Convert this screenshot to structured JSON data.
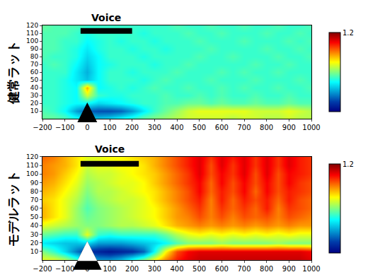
{
  "chart_data": [
    {
      "type": "heatmap",
      "y_label": "健常ラット",
      "x": [
        -200,
        -150,
        -100,
        -50,
        0,
        50,
        100,
        150,
        200,
        250,
        300,
        350,
        400,
        450,
        500,
        550,
        600,
        650,
        700,
        750,
        800,
        850,
        900,
        950,
        1000
      ],
      "y": [
        0,
        10,
        20,
        30,
        40,
        50,
        60,
        70,
        80,
        90,
        100,
        110,
        120
      ],
      "z": [
        [
          0.99,
          0.99,
          0.98,
          0.96,
          0.93,
          0.92,
          0.93,
          0.95,
          0.97,
          0.99,
          1.0,
          1.01,
          1.02,
          1.03,
          1.03,
          1.03,
          1.03,
          1.02,
          1.03,
          1.03,
          1.02,
          1.02,
          1.03,
          1.02,
          1.02
        ],
        [
          0.98,
          0.97,
          0.95,
          0.9,
          0.87,
          0.86,
          0.86,
          0.87,
          0.9,
          0.94,
          0.97,
          0.99,
          1.01,
          1.03,
          1.04,
          1.04,
          1.04,
          1.04,
          1.04,
          1.03,
          1.03,
          1.03,
          1.04,
          1.03,
          1.02
        ],
        [
          0.97,
          0.97,
          0.96,
          0.95,
          0.95,
          0.93,
          0.94,
          0.95,
          0.96,
          0.97,
          0.97,
          0.98,
          0.98,
          0.99,
          0.99,
          0.98,
          0.99,
          0.98,
          0.98,
          0.99,
          0.98,
          0.98,
          0.99,
          0.98,
          0.98
        ],
        [
          0.97,
          0.97,
          0.96,
          0.95,
          1.03,
          0.97,
          0.96,
          0.96,
          0.97,
          0.97,
          0.97,
          0.98,
          0.97,
          0.97,
          0.98,
          0.97,
          0.98,
          0.97,
          0.97,
          0.98,
          0.97,
          0.97,
          0.98,
          0.97,
          0.97
        ],
        [
          0.97,
          0.97,
          0.96,
          0.95,
          1.08,
          0.95,
          0.96,
          0.97,
          0.96,
          0.97,
          0.98,
          0.97,
          0.97,
          0.98,
          0.97,
          0.97,
          0.98,
          0.97,
          0.98,
          0.97,
          0.97,
          0.98,
          0.97,
          0.97,
          0.98
        ],
        [
          0.97,
          0.97,
          0.96,
          0.94,
          0.92,
          0.95,
          0.97,
          0.97,
          0.97,
          0.96,
          0.97,
          0.98,
          0.97,
          0.97,
          0.97,
          0.98,
          0.97,
          0.97,
          0.97,
          0.98,
          0.97,
          0.97,
          0.97,
          0.98,
          0.97
        ],
        [
          0.97,
          0.97,
          0.97,
          0.94,
          0.91,
          0.95,
          0.97,
          0.97,
          0.96,
          0.97,
          0.97,
          0.97,
          0.98,
          0.97,
          0.97,
          0.97,
          0.98,
          0.97,
          0.98,
          0.97,
          0.97,
          0.98,
          0.97,
          0.97,
          0.97
        ],
        [
          0.97,
          0.98,
          0.97,
          0.95,
          0.92,
          0.95,
          0.96,
          0.97,
          0.97,
          0.97,
          0.96,
          0.97,
          0.97,
          0.98,
          0.97,
          0.97,
          0.97,
          0.97,
          0.97,
          0.98,
          0.97,
          0.97,
          0.98,
          0.97,
          0.97
        ],
        [
          0.98,
          0.97,
          0.97,
          0.96,
          0.93,
          0.95,
          0.97,
          0.97,
          0.97,
          0.96,
          0.97,
          0.97,
          0.97,
          0.97,
          0.98,
          0.97,
          0.97,
          0.98,
          0.97,
          0.97,
          0.97,
          0.98,
          0.97,
          0.97,
          0.98
        ],
        [
          0.98,
          0.98,
          0.97,
          0.96,
          0.94,
          0.96,
          0.97,
          0.97,
          0.96,
          0.97,
          0.97,
          0.96,
          0.97,
          0.97,
          0.97,
          0.98,
          0.97,
          0.97,
          0.97,
          0.97,
          0.98,
          0.97,
          0.97,
          0.98,
          0.97
        ],
        [
          0.98,
          0.98,
          0.97,
          0.97,
          0.95,
          0.96,
          0.97,
          0.96,
          0.97,
          0.97,
          0.96,
          0.97,
          0.97,
          0.97,
          0.98,
          0.97,
          0.97,
          0.97,
          0.98,
          0.97,
          0.97,
          0.97,
          0.98,
          0.97,
          0.98
        ],
        [
          0.98,
          0.98,
          0.98,
          0.97,
          0.96,
          0.97,
          0.97,
          0.97,
          0.97,
          0.96,
          0.97,
          0.97,
          0.97,
          0.98,
          0.97,
          0.97,
          0.98,
          0.97,
          0.97,
          0.97,
          0.98,
          0.97,
          0.97,
          0.98,
          0.97
        ],
        [
          0.99,
          0.98,
          0.98,
          0.98,
          0.97,
          0.97,
          0.97,
          0.97,
          0.97,
          0.97,
          0.97,
          0.97,
          0.98,
          0.97,
          0.97,
          0.98,
          0.97,
          0.97,
          0.98,
          0.97,
          0.97,
          0.98,
          0.97,
          0.97,
          0.98
        ]
      ],
      "xlim": [
        -200,
        1000
      ],
      "xticks": [
        -200,
        -100,
        0,
        100,
        200,
        300,
        400,
        500,
        600,
        700,
        800,
        900,
        1000
      ],
      "ylim": [
        0,
        120
      ],
      "yticks": [
        10,
        20,
        30,
        40,
        50,
        60,
        70,
        80,
        90,
        100,
        110,
        120
      ],
      "colorbar": {
        "range": [
          0.8,
          1.2
        ],
        "ticks": [
          1.2
        ]
      },
      "annotations": [
        {
          "text": "Voice",
          "x": [
            -30,
            200
          ],
          "y": 113
        }
      ],
      "arrow": {
        "x": 0,
        "y": [
          2,
          21
        ],
        "color": "black"
      }
    },
    {
      "type": "heatmap",
      "y_label": "モデルラット",
      "x": [
        -200,
        -150,
        -100,
        -50,
        0,
        50,
        100,
        150,
        200,
        250,
        300,
        350,
        400,
        450,
        500,
        550,
        600,
        650,
        700,
        750,
        800,
        850,
        900,
        950,
        1000
      ],
      "y": [
        0,
        10,
        20,
        30,
        40,
        50,
        60,
        70,
        80,
        90,
        100,
        110,
        120
      ],
      "z": [
        [
          1.04,
          1.04,
          1.02,
          0.98,
          0.93,
          0.9,
          0.9,
          0.92,
          0.96,
          1.0,
          1.05,
          1.1,
          1.14,
          1.16,
          1.17,
          1.17,
          1.17,
          1.17,
          1.17,
          1.17,
          1.17,
          1.17,
          1.17,
          1.17,
          1.16
        ],
        [
          1.0,
          0.97,
          0.93,
          0.88,
          0.84,
          0.83,
          0.82,
          0.83,
          0.84,
          0.87,
          0.95,
          1.05,
          1.12,
          1.15,
          1.16,
          1.16,
          1.16,
          1.16,
          1.16,
          1.16,
          1.16,
          1.16,
          1.16,
          1.16,
          1.15
        ],
        [
          0.94,
          0.93,
          0.92,
          0.92,
          0.93,
          0.9,
          0.9,
          0.9,
          0.91,
          0.92,
          0.93,
          0.95,
          0.98,
          1.0,
          1.0,
          1.0,
          1.01,
          1.0,
          1.0,
          1.0,
          1.0,
          1.01,
          1.0,
          1.0,
          1.0
        ],
        [
          0.99,
          0.98,
          0.97,
          0.97,
          1.04,
          0.97,
          0.96,
          0.97,
          0.97,
          0.97,
          0.97,
          0.99,
          1.02,
          1.04,
          1.05,
          1.04,
          1.05,
          1.04,
          1.05,
          1.04,
          1.05,
          1.04,
          1.05,
          1.04,
          1.04
        ],
        [
          1.04,
          1.03,
          1.02,
          1.01,
          1.0,
          1.0,
          1.01,
          1.02,
          1.02,
          1.03,
          1.04,
          1.06,
          1.08,
          1.09,
          1.1,
          1.09,
          1.1,
          1.09,
          1.1,
          1.09,
          1.1,
          1.09,
          1.1,
          1.09,
          1.09
        ],
        [
          1.08,
          1.06,
          1.04,
          1.01,
          0.99,
          1.0,
          1.01,
          1.02,
          1.03,
          1.04,
          1.05,
          1.07,
          1.09,
          1.1,
          1.12,
          1.1,
          1.12,
          1.1,
          1.12,
          1.11,
          1.12,
          1.1,
          1.12,
          1.11,
          1.1
        ],
        [
          1.08,
          1.06,
          1.04,
          1.01,
          0.98,
          1.0,
          1.01,
          1.02,
          1.03,
          1.04,
          1.05,
          1.07,
          1.09,
          1.11,
          1.13,
          1.1,
          1.13,
          1.11,
          1.13,
          1.11,
          1.14,
          1.1,
          1.13,
          1.12,
          1.11
        ],
        [
          1.07,
          1.06,
          1.04,
          1.02,
          0.99,
          1.01,
          1.02,
          1.03,
          1.03,
          1.04,
          1.06,
          1.08,
          1.1,
          1.12,
          1.14,
          1.1,
          1.14,
          1.11,
          1.14,
          1.12,
          1.14,
          1.11,
          1.14,
          1.12,
          1.11
        ],
        [
          1.08,
          1.07,
          1.05,
          1.03,
          1.0,
          1.02,
          1.02,
          1.03,
          1.04,
          1.05,
          1.06,
          1.08,
          1.1,
          1.12,
          1.15,
          1.11,
          1.14,
          1.12,
          1.15,
          1.11,
          1.15,
          1.12,
          1.14,
          1.13,
          1.12
        ],
        [
          1.09,
          1.08,
          1.06,
          1.04,
          1.01,
          1.02,
          1.03,
          1.04,
          1.04,
          1.05,
          1.07,
          1.09,
          1.11,
          1.13,
          1.15,
          1.11,
          1.15,
          1.12,
          1.15,
          1.12,
          1.15,
          1.12,
          1.15,
          1.13,
          1.12
        ],
        [
          1.1,
          1.09,
          1.07,
          1.05,
          1.02,
          1.03,
          1.03,
          1.04,
          1.05,
          1.06,
          1.07,
          1.09,
          1.11,
          1.13,
          1.16,
          1.12,
          1.15,
          1.13,
          1.16,
          1.12,
          1.16,
          1.12,
          1.15,
          1.14,
          1.13
        ],
        [
          1.1,
          1.09,
          1.08,
          1.06,
          1.03,
          1.04,
          1.04,
          1.05,
          1.05,
          1.06,
          1.08,
          1.1,
          1.12,
          1.14,
          1.16,
          1.12,
          1.16,
          1.13,
          1.16,
          1.13,
          1.16,
          1.13,
          1.16,
          1.14,
          1.13
        ],
        [
          1.11,
          1.1,
          1.08,
          1.06,
          1.04,
          1.04,
          1.05,
          1.05,
          1.06,
          1.07,
          1.08,
          1.1,
          1.12,
          1.14,
          1.16,
          1.13,
          1.16,
          1.14,
          1.16,
          1.13,
          1.16,
          1.13,
          1.16,
          1.14,
          1.13
        ]
      ],
      "xlim": [
        -200,
        1000
      ],
      "xticks": [
        -200,
        -100,
        0,
        100,
        200,
        300,
        400,
        500,
        600,
        700,
        800,
        900,
        1000
      ],
      "ylim": [
        0,
        120
      ],
      "yticks": [
        10,
        20,
        30,
        40,
        50,
        60,
        70,
        80,
        90,
        100,
        110,
        120
      ],
      "colorbar": {
        "range": [
          0.8,
          1.2
        ],
        "ticks": [
          1.2
        ]
      },
      "annotations": [
        {
          "text": "Voice",
          "x": [
            -30,
            230
          ],
          "y": 112
        }
      ],
      "arrow": {
        "x": 0,
        "y": [
          2,
          22
        ],
        "color": "white"
      }
    }
  ]
}
